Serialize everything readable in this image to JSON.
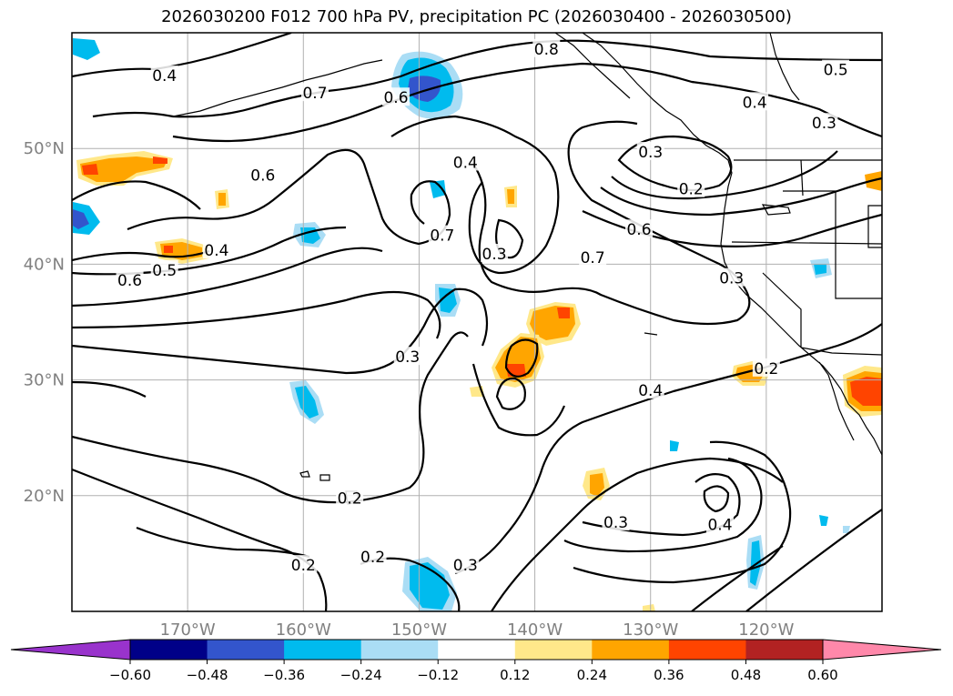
{
  "title": "2026030200 F012 700 hPa PV, precipitation PC (2026030400 - 2026030500)",
  "map": {
    "lat_labels": [
      "50°N",
      "40°N",
      "30°N",
      "20°N"
    ],
    "lon_labels": [
      "170°W",
      "160°W",
      "150°W",
      "140°W",
      "130°W",
      "120°W"
    ],
    "lat_values": [
      50,
      40,
      30,
      20
    ],
    "lon_values": [
      -170,
      -160,
      -150,
      -140,
      -130,
      -120
    ],
    "contour_labels": [
      {
        "text": "0.4",
        "lon": -172,
        "lat": 56.3
      },
      {
        "text": "0.7",
        "lon": -159,
        "lat": 54.8
      },
      {
        "text": "0.6",
        "lon": -152,
        "lat": 54.4
      },
      {
        "text": "0.8",
        "lon": -139,
        "lat": 58.6
      },
      {
        "text": "0.5",
        "lon": -114,
        "lat": 56.8
      },
      {
        "text": "0.4",
        "lon": -121,
        "lat": 54.0
      },
      {
        "text": "0.3",
        "lon": -115,
        "lat": 52.2
      },
      {
        "text": "0.3",
        "lon": -130,
        "lat": 49.7
      },
      {
        "text": "0.2",
        "lon": -126.5,
        "lat": 46.5
      },
      {
        "text": "0.6",
        "lon": -131,
        "lat": 43.0
      },
      {
        "text": "0.4",
        "lon": -146,
        "lat": 48.8
      },
      {
        "text": "0.6",
        "lon": -163.5,
        "lat": 47.7
      },
      {
        "text": "0.7",
        "lon": -148,
        "lat": 42.5
      },
      {
        "text": "0.3",
        "lon": -143.5,
        "lat": 40.9
      },
      {
        "text": "0.7",
        "lon": -135,
        "lat": 40.6
      },
      {
        "text": "0.3",
        "lon": -123,
        "lat": 38.8
      },
      {
        "text": "0.4",
        "lon": -167.5,
        "lat": 41.2
      },
      {
        "text": "0.5",
        "lon": -172,
        "lat": 39.5
      },
      {
        "text": "0.6",
        "lon": -175,
        "lat": 38.6
      },
      {
        "text": "0.3",
        "lon": -151,
        "lat": 32.0
      },
      {
        "text": "0.2",
        "lon": -120,
        "lat": 31.0
      },
      {
        "text": "0.4",
        "lon": -130,
        "lat": 29.1
      },
      {
        "text": "0.2",
        "lon": -156,
        "lat": 19.8
      },
      {
        "text": "0.3",
        "lon": -133,
        "lat": 17.7
      },
      {
        "text": "0.4",
        "lon": -124,
        "lat": 17.5
      },
      {
        "text": "0.2",
        "lon": -160,
        "lat": 14.0
      },
      {
        "text": "0.2",
        "lon": -154,
        "lat": 14.7
      },
      {
        "text": "0.3",
        "lon": -146,
        "lat": 14.0
      }
    ]
  },
  "colorbar": {
    "ticks": [
      "−0.60",
      "−0.48",
      "−0.36",
      "−0.24",
      "−0.12",
      "0.12",
      "0.24",
      "0.36",
      "0.48",
      "0.60"
    ],
    "colors": [
      "#9933cc",
      "#000088",
      "#3355cc",
      "#00bbee",
      "#aaddf5",
      "#ffffff",
      "#ffe88a",
      "#ffa500",
      "#ff4400",
      "#b22222",
      "#ff88aa"
    ]
  }
}
